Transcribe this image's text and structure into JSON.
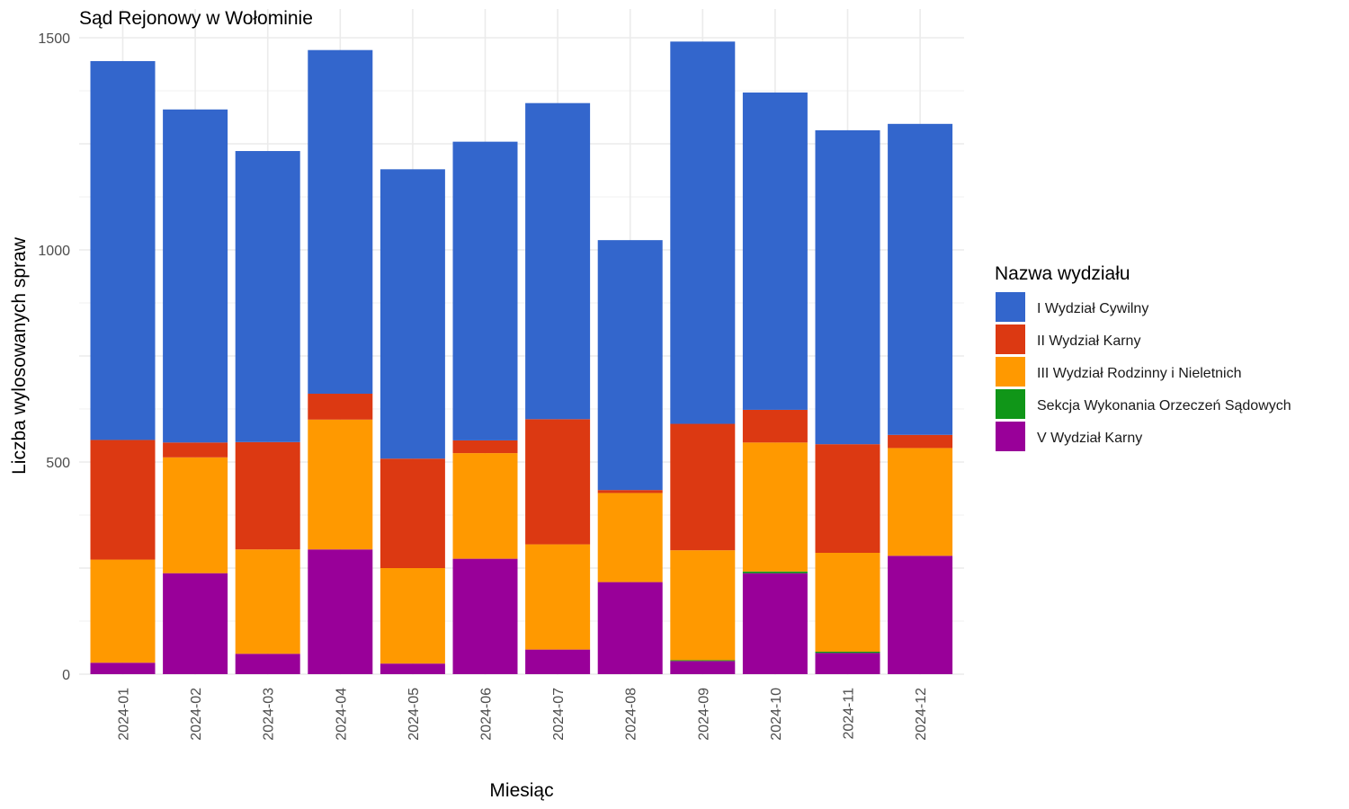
{
  "chart_data": {
    "type": "bar",
    "stacked": true,
    "title": "Sąd Rejonowy w Wołominie",
    "xlabel": "Miesiąc",
    "ylabel": "Liczba wylosowanych spraw",
    "ylim": [
      0,
      1500
    ],
    "y_ticks": [
      "0",
      "500",
      "1000",
      "1500"
    ],
    "grid": true,
    "legend_title": "Nazwa wydziału",
    "legend_position": "right",
    "categories": [
      "2024-01",
      "2024-02",
      "2024-03",
      "2024-04",
      "2024-05",
      "2024-06",
      "2024-07",
      "2024-08",
      "2024-09",
      "2024-10",
      "2024-11",
      "2024-12"
    ],
    "series": [
      {
        "name": "V Wydział Karny",
        "color": "#990099",
        "values": [
          27,
          238,
          48,
          294,
          25,
          272,
          58,
          217,
          31,
          238,
          50,
          279
        ]
      },
      {
        "name": "Sekcja Wykonania Orzeczeń Sądowych",
        "color": "#109618",
        "values": [
          0,
          0,
          0,
          0,
          0,
          0,
          0,
          0,
          2,
          4,
          3,
          0
        ]
      },
      {
        "name": "III Wydział Rodzinny i Nieletnich",
        "color": "#ff9900",
        "values": [
          243,
          273,
          246,
          306,
          225,
          249,
          248,
          210,
          259,
          304,
          233,
          254
        ]
      },
      {
        "name": "II Wydział Karny",
        "color": "#dc3912",
        "values": [
          282,
          35,
          253,
          61,
          258,
          30,
          295,
          7,
          298,
          77,
          256,
          31
        ]
      },
      {
        "name": "I Wydział Cywilny",
        "color": "#3366cc",
        "values": [
          893,
          785,
          686,
          810,
          682,
          704,
          745,
          589,
          901,
          748,
          740,
          733
        ]
      }
    ],
    "legend_order": [
      "I Wydział Cywilny",
      "II Wydział Karny",
      "III Wydział Rodzinny i Nieletnich",
      "Sekcja Wykonania Orzeczeń Sądowych",
      "V Wydział Karny"
    ]
  }
}
